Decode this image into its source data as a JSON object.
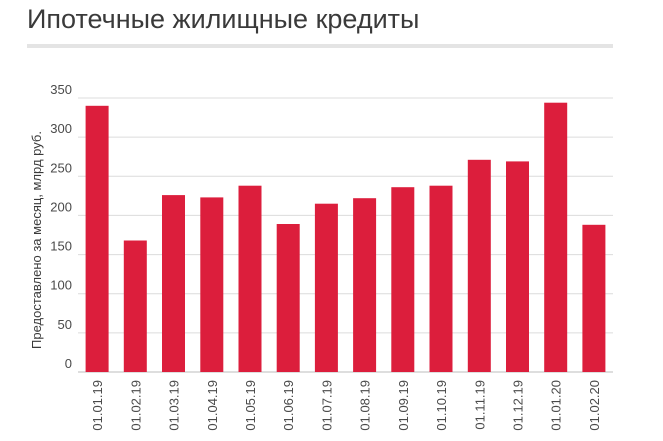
{
  "title": "Ипотечные жилищные кредиты",
  "chart_data": {
    "type": "bar",
    "title": "Ипотечные жилищные кредиты",
    "xlabel": "",
    "ylabel": "Предоставлено за месяц, млрд руб.",
    "categories": [
      "01.01.19",
      "01.02.19",
      "01.03.19",
      "01.04.19",
      "01.05.19",
      "01.06.19",
      "01.07.19",
      "01.08.19",
      "01.09.19",
      "01.10.19",
      "01.11.19",
      "01.12.19",
      "01.01.20",
      "01.02.20"
    ],
    "values": [
      340,
      168,
      226,
      223,
      238,
      189,
      215,
      222,
      236,
      238,
      271,
      269,
      344,
      188
    ],
    "ylim": [
      0,
      350
    ],
    "yticks": [
      0,
      50,
      100,
      150,
      200,
      250,
      300,
      350
    ],
    "grid": true,
    "legend": "none",
    "bar_color": "#dc1e3c",
    "grid_color": "#dcdcdc"
  }
}
